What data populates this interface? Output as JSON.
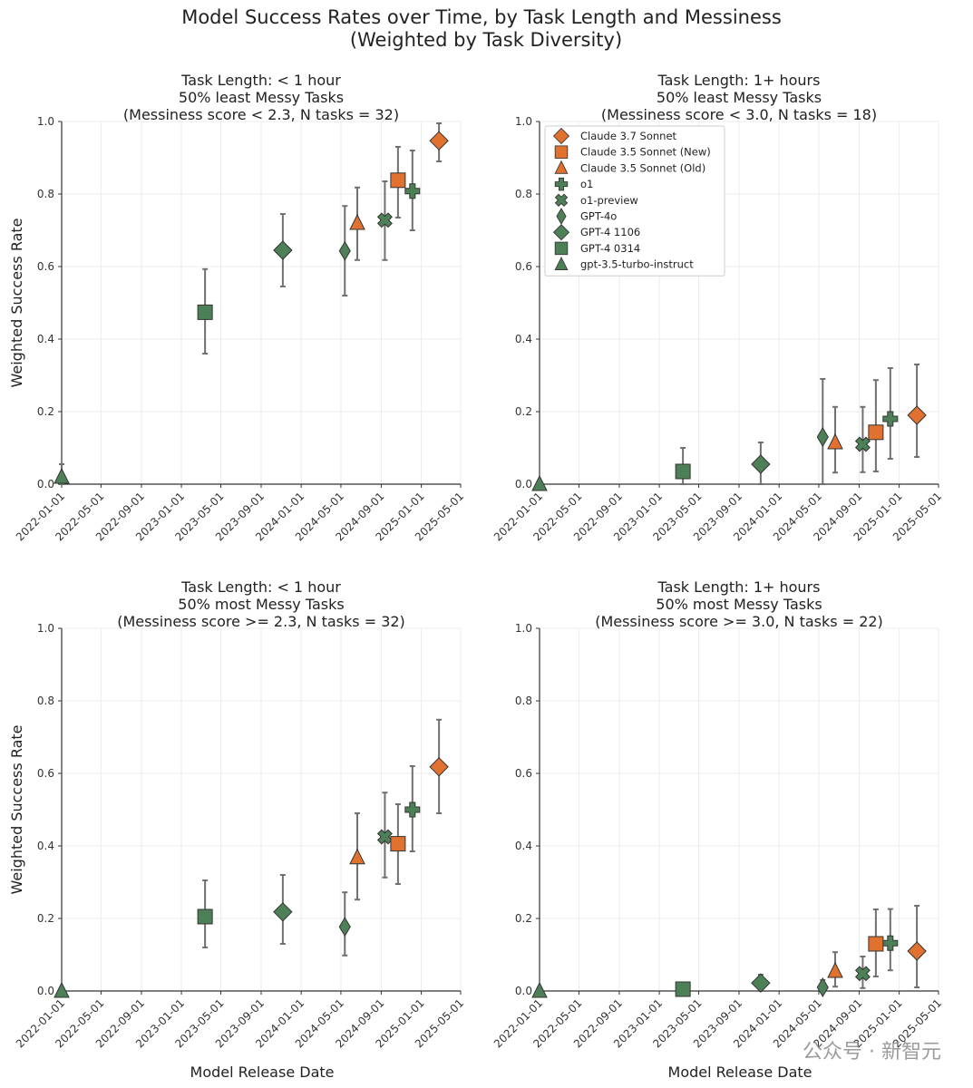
{
  "figure": {
    "title_line1": "Model Success Rates over Time, by Task Length and Messiness",
    "title_line2": "(Weighted by Task Diversity)",
    "watermark": "公众号 · 新智元"
  },
  "colors": {
    "orange": "#e0712e",
    "green": "#4d8056",
    "edge": "#333333",
    "errorbar": "#707070",
    "grid": "#ececec"
  },
  "chart_data": [
    {
      "type": "scatter",
      "title": [
        "Task Length: < 1 hour",
        "50% least Messy Tasks",
        "(Messiness score < 2.3, N tasks = 32)"
      ],
      "xlabel": "",
      "ylabel": "Weighted Success Rate",
      "x_ticks": [
        "2022-01-01",
        "2022-05-01",
        "2022-09-01",
        "2023-01-01",
        "2023-05-01",
        "2023-09-01",
        "2024-01-01",
        "2024-05-01",
        "2024-09-01",
        "2025-01-01",
        "2025-05-01"
      ],
      "y_ticks": [
        "0.0",
        "0.2",
        "0.4",
        "0.6",
        "0.8",
        "1.0"
      ],
      "ylim": [
        0,
        1
      ],
      "grid": true,
      "legend": false,
      "series": [
        {
          "name": "Claude 3.7 Sonnet",
          "marker": "diamond",
          "color": "orange",
          "x": "2025-02-24",
          "y": 0.947,
          "lo": 0.89,
          "hi": 0.995
        },
        {
          "name": "Claude 3.5 Sonnet (New)",
          "marker": "square",
          "color": "orange",
          "x": "2024-10-22",
          "y": 0.838,
          "lo": 0.735,
          "hi": 0.93
        },
        {
          "name": "Claude 3.5 Sonnet (Old)",
          "marker": "triangle",
          "color": "orange",
          "x": "2024-06-20",
          "y": 0.72,
          "lo": 0.618,
          "hi": 0.818
        },
        {
          "name": "o1",
          "marker": "plus",
          "color": "green",
          "x": "2024-12-05",
          "y": 0.808,
          "lo": 0.7,
          "hi": 0.92
        },
        {
          "name": "o1-preview",
          "marker": "x",
          "color": "green",
          "x": "2024-09-12",
          "y": 0.728,
          "lo": 0.618,
          "hi": 0.835
        },
        {
          "name": "GPT-4o",
          "marker": "thin_diamond",
          "color": "green",
          "x": "2024-05-13",
          "y": 0.643,
          "lo": 0.52,
          "hi": 0.767
        },
        {
          "name": "GPT-4 1106",
          "marker": "diamond",
          "color": "green",
          "x": "2023-11-06",
          "y": 0.645,
          "lo": 0.545,
          "hi": 0.745
        },
        {
          "name": "GPT-4 0314",
          "marker": "square",
          "color": "green",
          "x": "2023-03-14",
          "y": 0.474,
          "lo": 0.36,
          "hi": 0.593
        },
        {
          "name": "gpt-3.5-turbo-instruct",
          "marker": "triangle",
          "color": "green",
          "x": "2022-01-01",
          "y": 0.02,
          "lo": 0.0,
          "hi": 0.055
        }
      ]
    },
    {
      "type": "scatter",
      "title": [
        "Task Length: 1+ hours",
        "50% least Messy Tasks",
        "(Messiness score < 3.0, N tasks = 18)"
      ],
      "xlabel": "",
      "ylabel": "",
      "x_ticks": [
        "2022-01-01",
        "2022-05-01",
        "2022-09-01",
        "2023-01-01",
        "2023-05-01",
        "2023-09-01",
        "2024-01-01",
        "2024-05-01",
        "2024-09-01",
        "2025-01-01",
        "2025-05-01"
      ],
      "y_ticks": [
        "0.0",
        "0.2",
        "0.4",
        "0.6",
        "0.8",
        "1.0"
      ],
      "ylim": [
        0,
        1
      ],
      "grid": true,
      "legend": true,
      "legend_position": "upper-left",
      "series": [
        {
          "name": "Claude 3.7 Sonnet",
          "marker": "diamond",
          "color": "orange",
          "x": "2025-02-24",
          "y": 0.19,
          "lo": 0.075,
          "hi": 0.33
        },
        {
          "name": "Claude 3.5 Sonnet (New)",
          "marker": "square",
          "color": "orange",
          "x": "2024-10-22",
          "y": 0.143,
          "lo": 0.035,
          "hi": 0.287
        },
        {
          "name": "Claude 3.5 Sonnet (Old)",
          "marker": "triangle",
          "color": "orange",
          "x": "2024-06-20",
          "y": 0.115,
          "lo": 0.032,
          "hi": 0.213
        },
        {
          "name": "o1",
          "marker": "plus",
          "color": "green",
          "x": "2024-12-05",
          "y": 0.18,
          "lo": 0.07,
          "hi": 0.32
        },
        {
          "name": "o1-preview",
          "marker": "x",
          "color": "green",
          "x": "2024-09-12",
          "y": 0.11,
          "lo": 0.033,
          "hi": 0.213
        },
        {
          "name": "GPT-4o",
          "marker": "thin_diamond",
          "color": "green",
          "x": "2024-05-13",
          "y": 0.13,
          "lo": 0.0,
          "hi": 0.29
        },
        {
          "name": "GPT-4 1106",
          "marker": "diamond",
          "color": "green",
          "x": "2023-11-06",
          "y": 0.055,
          "lo": 0.0,
          "hi": 0.115
        },
        {
          "name": "GPT-4 0314",
          "marker": "square",
          "color": "green",
          "x": "2023-03-14",
          "y": 0.035,
          "lo": 0.0,
          "hi": 0.1
        },
        {
          "name": "gpt-3.5-turbo-instruct",
          "marker": "triangle",
          "color": "green",
          "x": "2022-01-01",
          "y": 0.0,
          "lo": 0.0,
          "hi": 0.0
        }
      ]
    },
    {
      "type": "scatter",
      "title": [
        "Task Length: < 1 hour",
        "50% most Messy Tasks",
        "(Messiness score >= 2.3, N tasks = 32)"
      ],
      "xlabel": "Model Release Date",
      "ylabel": "Weighted Success Rate",
      "x_ticks": [
        "2022-01-01",
        "2022-05-01",
        "2022-09-01",
        "2023-01-01",
        "2023-05-01",
        "2023-09-01",
        "2024-01-01",
        "2024-05-01",
        "2024-09-01",
        "2025-01-01",
        "2025-05-01"
      ],
      "y_ticks": [
        "0.0",
        "0.2",
        "0.4",
        "0.6",
        "0.8",
        "1.0"
      ],
      "ylim": [
        0,
        1
      ],
      "grid": true,
      "legend": false,
      "series": [
        {
          "name": "Claude 3.7 Sonnet",
          "marker": "diamond",
          "color": "orange",
          "x": "2025-02-24",
          "y": 0.618,
          "lo": 0.49,
          "hi": 0.748
        },
        {
          "name": "Claude 3.5 Sonnet (New)",
          "marker": "square",
          "color": "orange",
          "x": "2024-10-22",
          "y": 0.406,
          "lo": 0.295,
          "hi": 0.515
        },
        {
          "name": "Claude 3.5 Sonnet (Old)",
          "marker": "triangle",
          "color": "orange",
          "x": "2024-06-20",
          "y": 0.368,
          "lo": 0.252,
          "hi": 0.49
        },
        {
          "name": "o1",
          "marker": "plus",
          "color": "green",
          "x": "2024-12-05",
          "y": 0.5,
          "lo": 0.385,
          "hi": 0.62
        },
        {
          "name": "o1-preview",
          "marker": "x",
          "color": "green",
          "x": "2024-09-12",
          "y": 0.425,
          "lo": 0.313,
          "hi": 0.547
        },
        {
          "name": "GPT-4o",
          "marker": "thin_diamond",
          "color": "green",
          "x": "2024-05-13",
          "y": 0.177,
          "lo": 0.098,
          "hi": 0.272
        },
        {
          "name": "GPT-4 1106",
          "marker": "diamond",
          "color": "green",
          "x": "2023-11-06",
          "y": 0.218,
          "lo": 0.13,
          "hi": 0.32
        },
        {
          "name": "GPT-4 0314",
          "marker": "square",
          "color": "green",
          "x": "2023-03-14",
          "y": 0.205,
          "lo": 0.12,
          "hi": 0.305
        },
        {
          "name": "gpt-3.5-turbo-instruct",
          "marker": "triangle",
          "color": "green",
          "x": "2022-01-01",
          "y": 0.0,
          "lo": 0.0,
          "hi": 0.0
        }
      ]
    },
    {
      "type": "scatter",
      "title": [
        "Task Length: 1+ hours",
        "50% most Messy Tasks",
        "(Messiness score >= 3.0, N tasks = 22)"
      ],
      "xlabel": "Model Release Date",
      "ylabel": "",
      "x_ticks": [
        "2022-01-01",
        "2022-05-01",
        "2022-09-01",
        "2023-01-01",
        "2023-05-01",
        "2023-09-01",
        "2024-01-01",
        "2024-05-01",
        "2024-09-01",
        "2025-01-01",
        "2025-05-01"
      ],
      "y_ticks": [
        "0.0",
        "0.2",
        "0.4",
        "0.6",
        "0.8",
        "1.0"
      ],
      "ylim": [
        0,
        1
      ],
      "grid": true,
      "legend": false,
      "series": [
        {
          "name": "Claude 3.7 Sonnet",
          "marker": "diamond",
          "color": "orange",
          "x": "2025-02-24",
          "y": 0.11,
          "lo": 0.01,
          "hi": 0.235
        },
        {
          "name": "Claude 3.5 Sonnet (New)",
          "marker": "square",
          "color": "orange",
          "x": "2024-10-22",
          "y": 0.13,
          "lo": 0.04,
          "hi": 0.225
        },
        {
          "name": "Claude 3.5 Sonnet (Old)",
          "marker": "triangle",
          "color": "orange",
          "x": "2024-06-20",
          "y": 0.055,
          "lo": 0.012,
          "hi": 0.107
        },
        {
          "name": "o1",
          "marker": "plus",
          "color": "green",
          "x": "2024-12-05",
          "y": 0.132,
          "lo": 0.057,
          "hi": 0.226
        },
        {
          "name": "o1-preview",
          "marker": "x",
          "color": "green",
          "x": "2024-09-12",
          "y": 0.048,
          "lo": 0.008,
          "hi": 0.095
        },
        {
          "name": "GPT-4o",
          "marker": "thin_diamond",
          "color": "green",
          "x": "2024-05-13",
          "y": 0.01,
          "lo": 0.0,
          "hi": 0.03
        },
        {
          "name": "GPT-4 1106",
          "marker": "diamond",
          "color": "green",
          "x": "2023-11-06",
          "y": 0.022,
          "lo": 0.0,
          "hi": 0.045
        },
        {
          "name": "GPT-4 0314",
          "marker": "square",
          "color": "green",
          "x": "2023-03-14",
          "y": 0.005,
          "lo": 0.0,
          "hi": 0.01
        },
        {
          "name": "gpt-3.5-turbo-instruct",
          "marker": "triangle",
          "color": "green",
          "x": "2022-01-01",
          "y": 0.0,
          "lo": 0.0,
          "hi": 0.0
        }
      ]
    }
  ]
}
